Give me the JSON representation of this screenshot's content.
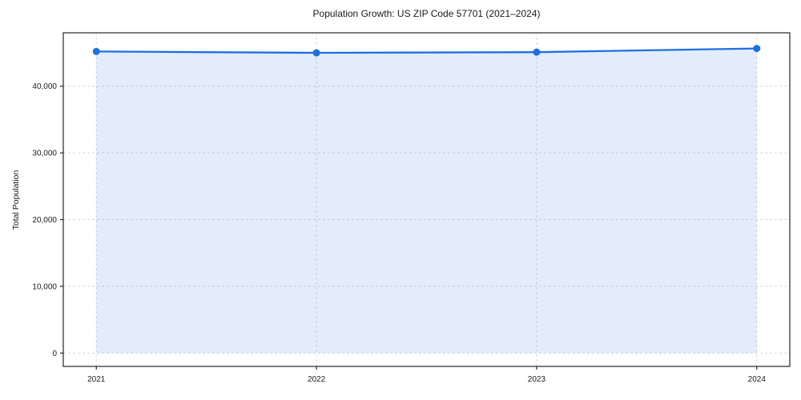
{
  "chart_data": {
    "type": "line",
    "title": "Population Growth: US ZIP Code 57701 (2021–2024)",
    "xlabel": "",
    "ylabel": "Total Population",
    "x": [
      2021,
      2022,
      2023,
      2024
    ],
    "x_tick_labels": [
      "2021",
      "2022",
      "2023",
      "2024"
    ],
    "series": [
      {
        "name": "Total Population",
        "values": [
          45200,
          45000,
          45100,
          45650
        ]
      }
    ],
    "xlim": [
      2020.85,
      2024.15
    ],
    "ylim": [
      -2000,
      48000
    ],
    "y_ticks": [
      0,
      10000,
      20000,
      30000,
      40000
    ],
    "y_tick_labels": [
      "0",
      "10,000",
      "20,000",
      "30,000",
      "40,000"
    ],
    "grid": true,
    "grid_style": "dashed",
    "legend": false,
    "marker": "circle",
    "area_fill": true,
    "colors": {
      "line": "#1f6fe0",
      "marker": "#1f6fe0",
      "area": "rgba(31,111,224,0.13)",
      "grid": "#d9d9d9",
      "spine": "#262626",
      "text": "#1a1a1a"
    }
  }
}
